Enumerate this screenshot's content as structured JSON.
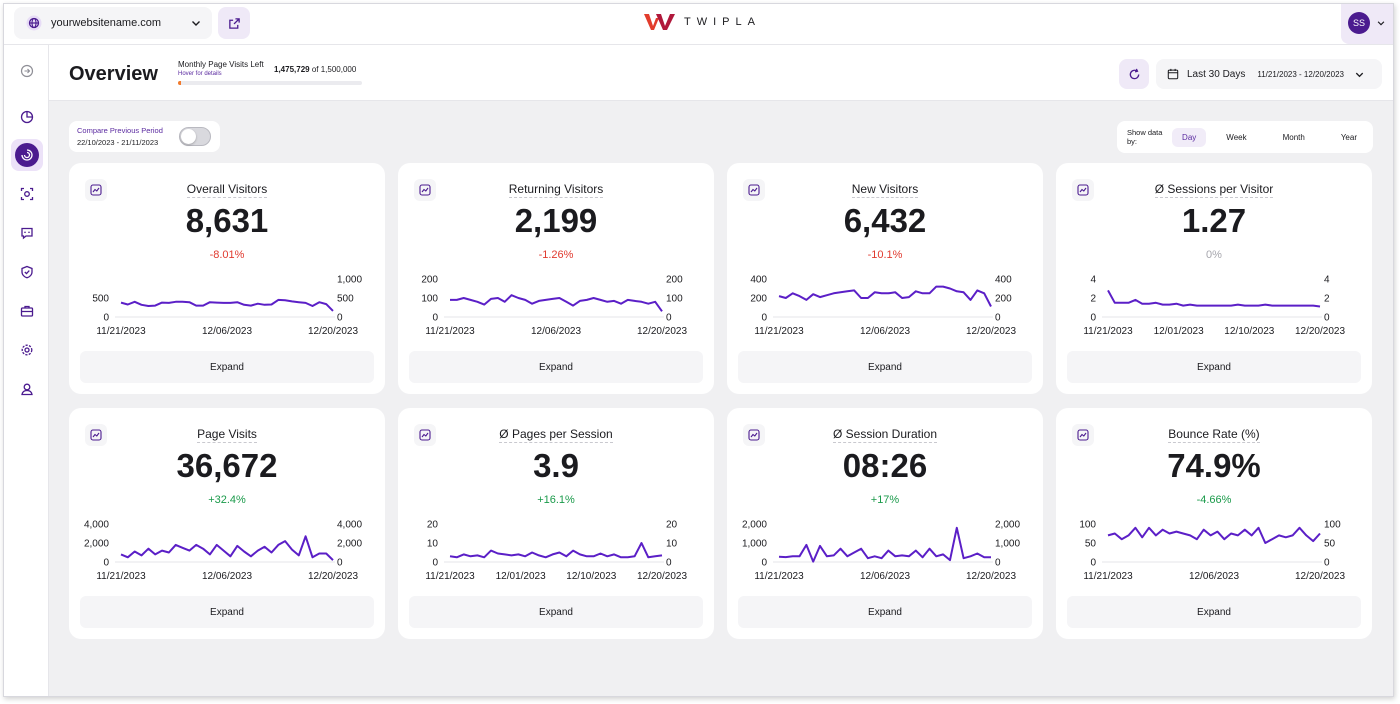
{
  "topbar": {
    "site_name": "yourwebsitename.com",
    "logo_text": "TWIPLA",
    "avatar_initials": "SS"
  },
  "header": {
    "title": "Overview",
    "visits_left_label": "Monthly Page Visits Left",
    "visits_left_hover": "Hover for details",
    "visits_left_count": "1,475,729",
    "visits_left_of": "of 1,500,000",
    "visits_left_fraction": 0.0161,
    "date_label": "Last 30 Days",
    "date_range": "11/21/2023 - 12/20/2023"
  },
  "compare": {
    "label": "Compare Previous Period",
    "dates": "22/10/2023 - 21/11/2023",
    "enabled": false
  },
  "period": {
    "label": "Show data by:",
    "options": [
      "Day",
      "Week",
      "Month",
      "Year"
    ],
    "selected": "Day"
  },
  "colors": {
    "accent": "#4b1b8f",
    "line": "#5b1fc7",
    "negative": "#e03a2f",
    "positive": "#1a9a4a",
    "neutral": "#a6a6ad"
  },
  "sidebar": {
    "icons": [
      "collapse-icon",
      "dashboard-icon",
      "overview-icon",
      "behavior-icon",
      "feedback-icon",
      "privacy-icon",
      "ecommerce-icon",
      "settings-icon",
      "account-icon"
    ],
    "active": "overview-icon"
  },
  "expand_label": "Expand",
  "cards": [
    {
      "title": "Overall Visitors",
      "value": "8,631",
      "change": "-8.01%",
      "trend": "neg",
      "left_ticks": [
        "500",
        "0"
      ],
      "right_ticks": [
        "1,000",
        "500",
        "0"
      ],
      "x_labels": [
        "11/21/2023",
        "12/06/2023",
        "12/20/2023"
      ],
      "ymax": 1000,
      "values": [
        380,
        330,
        400,
        320,
        290,
        300,
        380,
        370,
        400,
        400,
        390,
        300,
        300,
        390,
        380,
        370,
        370,
        390,
        320,
        300,
        350,
        320,
        330,
        450,
        440,
        410,
        390,
        370,
        290,
        390,
        340,
        160
      ]
    },
    {
      "title": "Returning Visitors",
      "value": "2,199",
      "change": "-1.26%",
      "trend": "neg",
      "left_ticks": [
        "200",
        "100",
        "0"
      ],
      "right_ticks": [
        "200",
        "100",
        "0"
      ],
      "x_labels": [
        "11/21/2023",
        "12/06/2023",
        "12/20/2023"
      ],
      "ymax": 200,
      "values": [
        90,
        90,
        100,
        90,
        80,
        65,
        95,
        100,
        80,
        115,
        100,
        90,
        70,
        85,
        90,
        95,
        100,
        80,
        60,
        85,
        90,
        100,
        90,
        80,
        85,
        70,
        90,
        85,
        80,
        70,
        80,
        30
      ]
    },
    {
      "title": "New Visitors",
      "value": "6,432",
      "change": "-10.1%",
      "trend": "neg",
      "left_ticks": [
        "400",
        "200",
        "0"
      ],
      "right_ticks": [
        "400",
        "200",
        "0"
      ],
      "x_labels": [
        "11/21/2023",
        "12/06/2023",
        "12/20/2023"
      ],
      "ymax": 400,
      "values": [
        220,
        200,
        250,
        220,
        180,
        240,
        210,
        230,
        250,
        260,
        270,
        280,
        200,
        200,
        260,
        250,
        250,
        260,
        200,
        210,
        270,
        250,
        250,
        320,
        320,
        300,
        270,
        260,
        180,
        280,
        250,
        110
      ]
    },
    {
      "title": "Ø Sessions per Visitor",
      "value": "1.27",
      "change": "0%",
      "trend": "neutral",
      "left_ticks": [
        "4",
        "2",
        "0"
      ],
      "right_ticks": [
        "4",
        "2",
        "0"
      ],
      "x_labels": [
        "11/21/2023",
        "12/01/2023",
        "12/10/2023",
        "12/20/2023"
      ],
      "ymax": 4,
      "values": [
        2.8,
        1.5,
        1.5,
        1.5,
        1.8,
        1.4,
        1.4,
        1.5,
        1.3,
        1.3,
        1.4,
        1.2,
        1.3,
        1.2,
        1.2,
        1.2,
        1.2,
        1.2,
        1.2,
        1.3,
        1.2,
        1.2,
        1.2,
        1.3,
        1.2,
        1.2,
        1.2,
        1.2,
        1.2,
        1.2,
        1.2,
        1.1
      ]
    },
    {
      "title": "Page Visits",
      "value": "36,672",
      "change": "+32.4%",
      "trend": "pos",
      "left_ticks": [
        "4,000",
        "2,000",
        "0"
      ],
      "right_ticks": [
        "4,000",
        "2,000",
        "0"
      ],
      "x_labels": [
        "11/21/2023",
        "12/06/2023",
        "12/20/2023"
      ],
      "ymax": 4000,
      "values": [
        800,
        500,
        1100,
        700,
        1400,
        800,
        1200,
        1000,
        1800,
        1500,
        1200,
        1800,
        1400,
        800,
        1800,
        1200,
        600,
        1700,
        1100,
        600,
        1200,
        1600,
        1000,
        1800,
        2200,
        1300,
        700,
        2700,
        500,
        900,
        900,
        200
      ]
    },
    {
      "title": "Ø Pages per Session",
      "value": "3.9",
      "change": "+16.1%",
      "trend": "pos",
      "left_ticks": [
        "20",
        "10",
        "0"
      ],
      "right_ticks": [
        "20",
        "10",
        "0"
      ],
      "x_labels": [
        "11/21/2023",
        "12/01/2023",
        "12/10/2023",
        "12/20/2023"
      ],
      "ymax": 20,
      "values": [
        3,
        2.5,
        4,
        3,
        3.5,
        2.5,
        6,
        4.5,
        4,
        3.5,
        4,
        3,
        5,
        3.5,
        2.5,
        4,
        5,
        3,
        6,
        4,
        3,
        3,
        4.5,
        3,
        4,
        2.5,
        2.5,
        3,
        10,
        2.5,
        3,
        3.5
      ]
    },
    {
      "title": "Ø Session Duration",
      "value": "08:26",
      "change": "+17%",
      "trend": "pos",
      "left_ticks": [
        "2,000",
        "1,000",
        "0"
      ],
      "right_ticks": [
        "2,000",
        "1,000",
        "0"
      ],
      "x_labels": [
        "11/21/2023",
        "12/06/2023",
        "12/20/2023"
      ],
      "ymax": 2000,
      "values": [
        280,
        260,
        300,
        300,
        900,
        20,
        850,
        300,
        350,
        700,
        300,
        500,
        700,
        200,
        300,
        200,
        600,
        300,
        350,
        300,
        600,
        250,
        700,
        300,
        400,
        100,
        1800,
        200,
        300,
        450,
        250,
        250
      ]
    },
    {
      "title": "Bounce Rate (%)",
      "value": "74.9%",
      "change": "-4.66%",
      "trend": "pos",
      "left_ticks": [
        "100",
        "50",
        "0"
      ],
      "right_ticks": [
        "100",
        "50",
        "0"
      ],
      "x_labels": [
        "11/21/2023",
        "12/06/2023",
        "12/20/2023"
      ],
      "ymax": 100,
      "values": [
        70,
        75,
        60,
        70,
        90,
        65,
        90,
        70,
        85,
        75,
        80,
        75,
        70,
        60,
        85,
        70,
        80,
        60,
        75,
        70,
        85,
        70,
        90,
        50,
        60,
        70,
        65,
        70,
        90,
        70,
        55,
        75
      ]
    }
  ]
}
